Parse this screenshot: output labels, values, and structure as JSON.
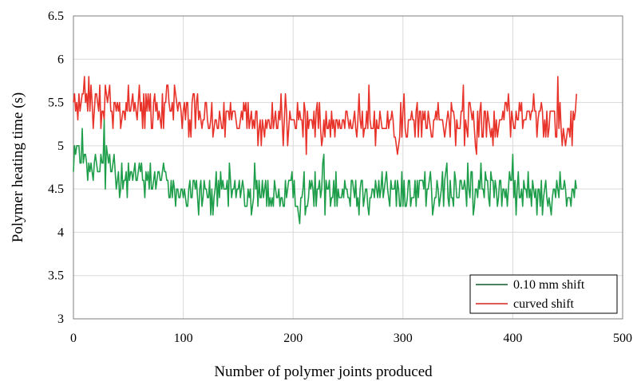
{
  "chart_data": {
    "type": "line",
    "title": "",
    "xlabel": "Number of polymer joints produced",
    "ylabel": "Polymer heating time (s)",
    "xlim": [
      0,
      500
    ],
    "ylim": [
      3,
      6.5
    ],
    "x_ticks": [
      0,
      100,
      200,
      300,
      400,
      500
    ],
    "y_ticks": [
      3,
      3.5,
      4,
      4.5,
      5,
      5.5,
      6,
      6.5
    ],
    "x_tick_labels": [
      "0",
      "100",
      "200",
      "300",
      "400",
      "500"
    ],
    "y_tick_labels": [
      "3",
      "3.5",
      "4",
      "4.5",
      "5",
      "5.5",
      "6",
      "6.5"
    ],
    "grid": true,
    "legend_position": "bottom-right",
    "series": [
      {
        "name": "0.10 mm shift",
        "color": "#1e9e4a",
        "legend_color": "#0f5a2c",
        "x": [
          0,
          10,
          20,
          30,
          40,
          50,
          60,
          70,
          80,
          90,
          100,
          110,
          120,
          130,
          140,
          150,
          160,
          170,
          180,
          190,
          200,
          210,
          220,
          230,
          240,
          250,
          260,
          270,
          280,
          290,
          300,
          310,
          320,
          330,
          340,
          350,
          360,
          370,
          380,
          390,
          400,
          410,
          420,
          430,
          440,
          450,
          455,
          458
        ],
        "values": [
          5.0,
          4.75,
          4.7,
          4.8,
          4.75,
          4.65,
          4.7,
          4.65,
          4.6,
          4.55,
          4.45,
          4.45,
          4.4,
          4.45,
          4.45,
          4.5,
          4.45,
          4.4,
          4.45,
          4.45,
          4.4,
          4.45,
          4.5,
          4.55,
          4.5,
          4.5,
          4.45,
          4.5,
          4.5,
          4.45,
          4.45,
          4.5,
          4.55,
          4.5,
          4.5,
          4.45,
          4.5,
          4.45,
          4.55,
          4.5,
          4.5,
          4.45,
          4.5,
          4.45,
          4.5,
          4.5,
          4.5,
          4.5
        ]
      },
      {
        "name": "curved shift",
        "color": "#e8332a",
        "legend_color": "#d9231c",
        "x": [
          0,
          10,
          20,
          30,
          40,
          50,
          60,
          70,
          80,
          90,
          100,
          110,
          120,
          130,
          140,
          150,
          160,
          170,
          180,
          190,
          200,
          210,
          220,
          230,
          240,
          250,
          260,
          270,
          280,
          290,
          300,
          310,
          320,
          330,
          340,
          350,
          360,
          370,
          380,
          390,
          400,
          410,
          420,
          430,
          440,
          450,
          455,
          458
        ],
        "values": [
          5.5,
          5.5,
          5.45,
          5.5,
          5.55,
          5.5,
          5.5,
          5.45,
          5.4,
          5.45,
          5.4,
          5.35,
          5.35,
          5.3,
          5.3,
          5.3,
          5.3,
          5.3,
          5.25,
          5.3,
          5.25,
          5.25,
          5.25,
          5.3,
          5.25,
          5.3,
          5.25,
          5.3,
          5.25,
          5.25,
          5.25,
          5.3,
          5.25,
          5.3,
          5.3,
          5.25,
          5.3,
          5.3,
          5.25,
          5.3,
          5.3,
          5.25,
          5.3,
          5.25,
          5.3,
          5.25,
          5.3,
          5.4
        ]
      }
    ]
  }
}
